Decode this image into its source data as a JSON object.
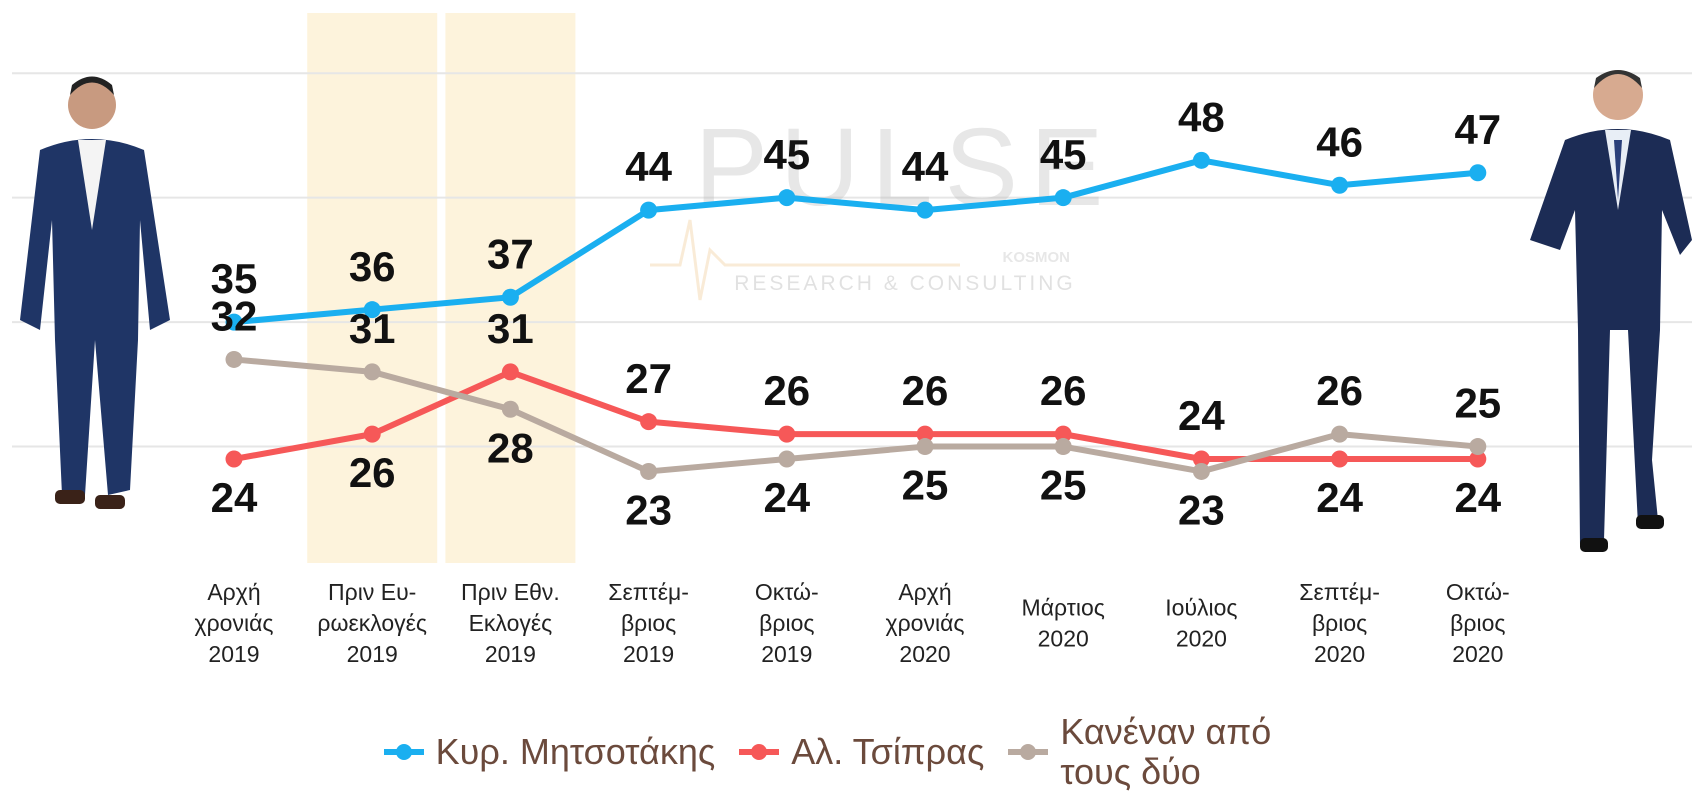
{
  "chart_data": {
    "type": "line",
    "categories": [
      [
        "Αρχή",
        "χρονιάς",
        "2019"
      ],
      [
        "Πριν Ευ-",
        "ρωεκλογές",
        "2019"
      ],
      [
        "Πριν Εθν.",
        "Εκλογές",
        "2019"
      ],
      [
        "Σεπτέμ-",
        "βριος",
        "2019"
      ],
      [
        "Οκτώ-",
        "βριος",
        "2019"
      ],
      [
        "Αρχή",
        "χρονιάς",
        "2020"
      ],
      [
        "Μάρτιος",
        "2020"
      ],
      [
        "Ιούλιος",
        "2020"
      ],
      [
        "Σεπτέμ-",
        "βριος",
        "2020"
      ],
      [
        "Οκτώ-",
        "βριος",
        "2020"
      ]
    ],
    "highlighted_categories": [
      1,
      2
    ],
    "series": [
      {
        "name": "Κυρ. Μητσοτάκης",
        "color": "#1aaff0",
        "values": [
          35,
          36,
          37,
          44,
          45,
          44,
          45,
          48,
          46,
          47
        ]
      },
      {
        "name": "Αλ. Τσίπρας",
        "color": "#f65858",
        "values": [
          24,
          26,
          31,
          27,
          26,
          26,
          26,
          24,
          24,
          24
        ]
      },
      {
        "name": "Κανέναν από τους δύο",
        "color": "#b9aaa0",
        "values": [
          32,
          31,
          28,
          23,
          24,
          25,
          25,
          23,
          26,
          25
        ]
      }
    ],
    "ylim": [
      15,
      60
    ],
    "yticks": [
      25,
      35,
      45,
      55
    ],
    "grid": true,
    "watermark": {
      "brand": "PULSE",
      "sub": "KOSMON",
      "tagline": "RESEARCH & CONSULTING"
    }
  }
}
